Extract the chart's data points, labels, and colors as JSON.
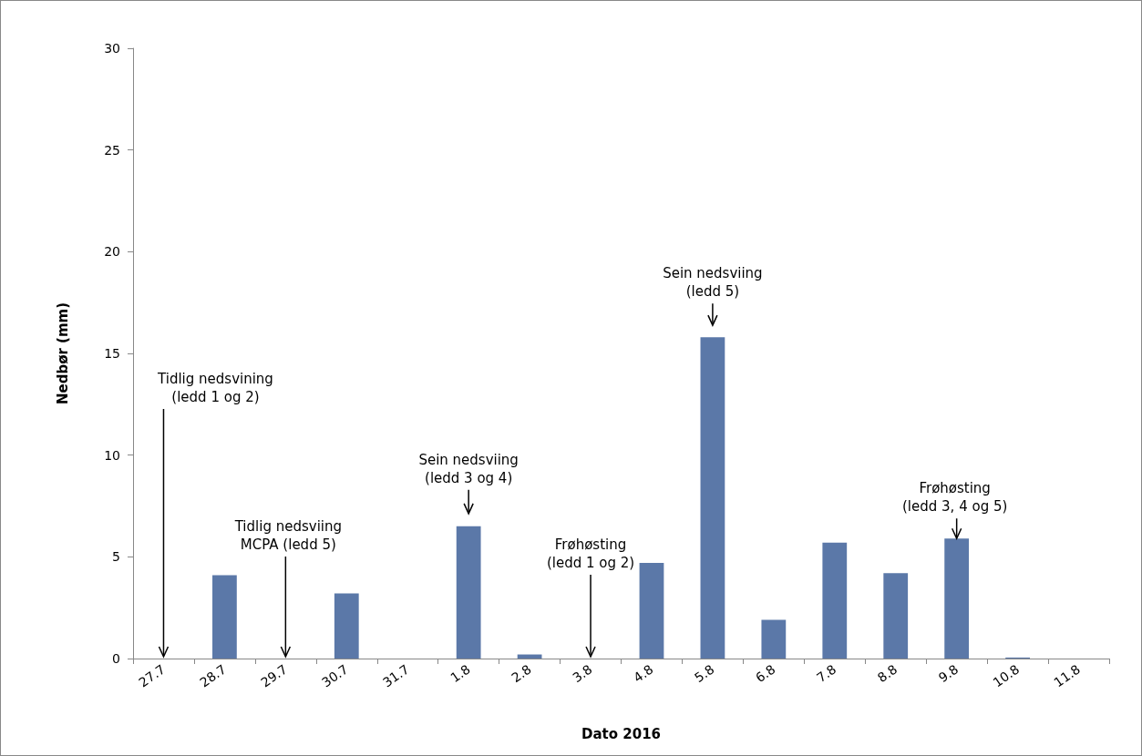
{
  "chart_data": {
    "type": "bar",
    "xlabel": "Dato 2016",
    "ylabel": "Nedbør (mm)",
    "categories": [
      "27.7",
      "28.7",
      "29.7",
      "30.7",
      "31.7",
      "1.8",
      "2.8",
      "3.8",
      "4.8",
      "5.8",
      "6.8",
      "7.8",
      "8.8",
      "9.8",
      "10.8",
      "11.8"
    ],
    "values": [
      0,
      4.1,
      0,
      3.2,
      0,
      6.5,
      0.2,
      0,
      4.7,
      15.8,
      1.9,
      5.7,
      4.2,
      5.9,
      0.05,
      0
    ],
    "color": "#5b78a8",
    "ylim": [
      0,
      30
    ],
    "yticks": [
      0,
      5,
      10,
      15,
      20,
      25,
      30
    ],
    "grid": false,
    "annotations": [
      {
        "text": "Tidlig nedsvining\n(ledd 1 og 2)",
        "x": "27.7",
        "y": 0
      },
      {
        "text": "Tidlig nedsviing\nMCPA (ledd 5)",
        "x": "29.7",
        "y": 0
      },
      {
        "text": "Sein nedsviing\n(ledd 3 og 4)",
        "x": "1.8",
        "y": 6.5
      },
      {
        "text": "Frøhøsting\n(ledd 1 og 2)",
        "x": "3.8",
        "y": 0
      },
      {
        "text": "Sein nedsviing\n(ledd 5)",
        "x": "5.8",
        "y": 15.8
      },
      {
        "text": "Frøhøsting\n(ledd 3, 4 og 5)",
        "x": "9.8",
        "y": 5.9
      }
    ]
  }
}
